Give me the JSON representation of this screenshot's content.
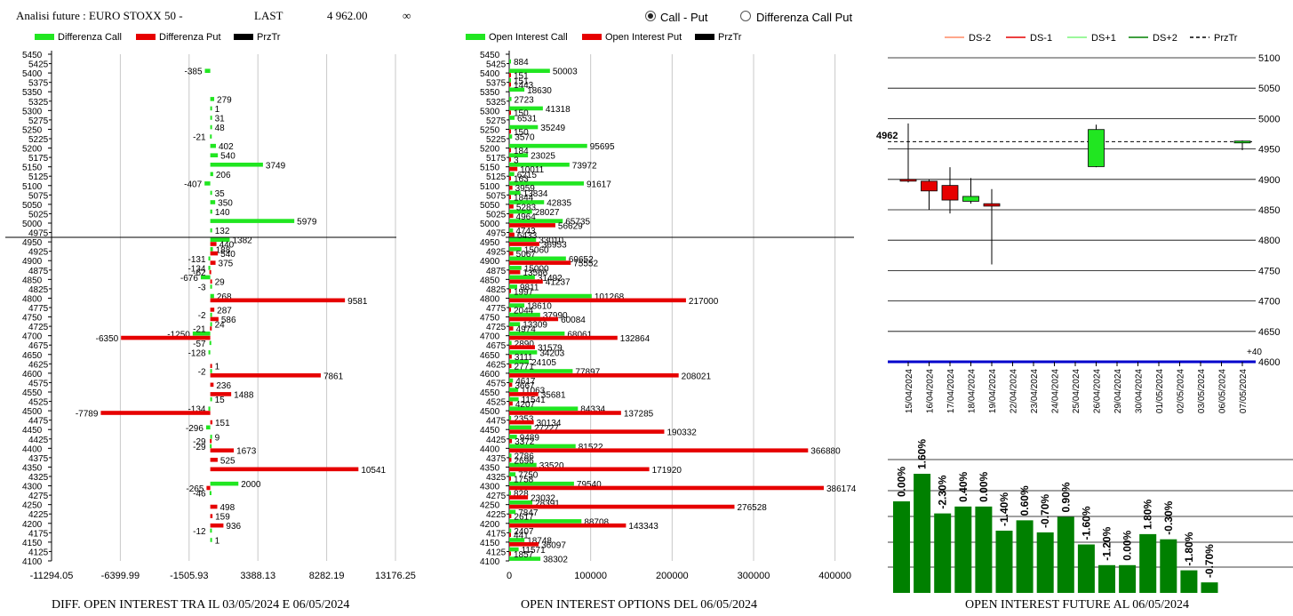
{
  "header": {
    "title": "Analisi future : EURO STOXX 50 -",
    "last_label": "LAST",
    "last_value": "4 962.00",
    "infinity_symbol": "∞",
    "options": [
      {
        "label": "Call - Put",
        "selected": true
      },
      {
        "label": "Differenza Call Put",
        "selected": false
      }
    ]
  },
  "colors": {
    "call": "#21e621",
    "put": "#e60000",
    "price": "#000000",
    "future_bar": "#008000",
    "baseline": "#0000cc"
  },
  "captions": {
    "diff": "DIFF. OPEN INTEREST TRA IL 03/05/2024 E 06/05/2024",
    "oi": "OPEN INTEREST OPTIONS DEL 06/05/2024",
    "future": "OPEN INTEREST FUTURE AL 06/05/2024"
  },
  "chart_data": [
    {
      "type": "bar",
      "orientation": "horizontal",
      "legend": [
        "Differenza Call",
        "Differenza Put",
        "PrzTr"
      ],
      "y_ticks": [
        "5450",
        "5425",
        "5400",
        "5375",
        "5350",
        "5325",
        "5300",
        "5275",
        "5250",
        "5225",
        "5200",
        "5175",
        "5150",
        "5125",
        "5100",
        "5075",
        "5050",
        "5025",
        "5000",
        "4975",
        "4950",
        "4925",
        "4900",
        "4875",
        "4850",
        "4825",
        "4800",
        "4775",
        "4750",
        "4725",
        "4700",
        "4675",
        "4650",
        "4625",
        "4600",
        "4575",
        "4550",
        "4525",
        "4500",
        "4475",
        "4450",
        "4425",
        "4400",
        "4375",
        "4350",
        "4325",
        "4300",
        "4275",
        "4250",
        "4225",
        "4200",
        "4175",
        "4150",
        "4125",
        "4100"
      ],
      "x_ticks": [
        "-11294.05",
        "-6399.99",
        "-1505.93",
        "3388.13",
        "8282.19",
        "13176.25"
      ],
      "xlim": [
        -11294.05,
        13176.25
      ],
      "price_line": 4962,
      "call": [
        [
          5400,
          -385
        ],
        [
          5325,
          279
        ],
        [
          5300,
          1
        ],
        [
          5275,
          31
        ],
        [
          5250,
          48
        ],
        [
          5225,
          -21
        ],
        [
          5200,
          402
        ],
        [
          5175,
          540
        ],
        [
          5150,
          3749
        ],
        [
          5125,
          206
        ],
        [
          5100,
          -407
        ],
        [
          5075,
          35
        ],
        [
          5050,
          350
        ],
        [
          5025,
          140
        ],
        [
          5000,
          5979
        ],
        [
          4975,
          132
        ],
        [
          4950,
          1382
        ],
        [
          4925,
          188
        ],
        [
          4900,
          -131
        ],
        [
          4875,
          -134
        ],
        [
          4850,
          -676
        ],
        [
          4825,
          -3
        ],
        [
          4800,
          268
        ],
        [
          4750,
          -2
        ],
        [
          4725,
          24
        ],
        [
          4700,
          -1250
        ],
        [
          4675,
          -57
        ],
        [
          4650,
          -128
        ],
        [
          4600,
          -2
        ],
        [
          4525,
          15
        ],
        [
          4500,
          -134
        ],
        [
          4450,
          -296
        ],
        [
          4425,
          9
        ],
        [
          4400,
          -29
        ],
        [
          4300,
          2000
        ],
        [
          4275,
          -46
        ],
        [
          4175,
          -12
        ],
        [
          4150,
          1
        ]
      ],
      "put": [
        [
          4950,
          440
        ],
        [
          4925,
          540
        ],
        [
          4900,
          375
        ],
        [
          4875,
          -62
        ],
        [
          4850,
          29
        ],
        [
          4800,
          9581
        ],
        [
          4775,
          287
        ],
        [
          4750,
          586
        ],
        [
          4725,
          -21
        ],
        [
          4700,
          -6350
        ],
        [
          4625,
          1
        ],
        [
          4600,
          7861
        ],
        [
          4575,
          236
        ],
        [
          4550,
          1488
        ],
        [
          4500,
          -7789
        ],
        [
          4475,
          151
        ],
        [
          4425,
          -29
        ],
        [
          4400,
          1673
        ],
        [
          4375,
          525
        ],
        [
          4350,
          10541
        ],
        [
          4300,
          -265
        ],
        [
          4250,
          498
        ],
        [
          4225,
          159
        ],
        [
          4200,
          936
        ]
      ]
    },
    {
      "type": "bar",
      "orientation": "horizontal",
      "legend": [
        "Open Interest Call",
        "Open Interest Put",
        "PrzTr"
      ],
      "y_ticks": [
        "5450",
        "5425",
        "5400",
        "5375",
        "5350",
        "5325",
        "5300",
        "5275",
        "5250",
        "5225",
        "5200",
        "5175",
        "5150",
        "5125",
        "5100",
        "5075",
        "5050",
        "5025",
        "5000",
        "4975",
        "4950",
        "4925",
        "4900",
        "4875",
        "4850",
        "4825",
        "4800",
        "4775",
        "4750",
        "4725",
        "4700",
        "4675",
        "4650",
        "4625",
        "4600",
        "4575",
        "4550",
        "4525",
        "4500",
        "4475",
        "4450",
        "4425",
        "4400",
        "4375",
        "4350",
        "4325",
        "4300",
        "4275",
        "4250",
        "4225",
        "4200",
        "4175",
        "4150",
        "4125",
        "4100"
      ],
      "x_ticks": [
        "0",
        "100000",
        "200000",
        "300000",
        "400000"
      ],
      "xlim": [
        0,
        420000
      ],
      "price_line": 4962,
      "call": [
        [
          5425,
          884
        ],
        [
          5400,
          50003
        ],
        [
          5375,
          151
        ],
        [
          5350,
          18630
        ],
        [
          5325,
          2723
        ],
        [
          5300,
          41318
        ],
        [
          5275,
          6531
        ],
        [
          5250,
          35249
        ],
        [
          5225,
          3570
        ],
        [
          5200,
          95695
        ],
        [
          5175,
          23025
        ],
        [
          5150,
          73972
        ],
        [
          5125,
          6215
        ],
        [
          5100,
          91617
        ],
        [
          5075,
          13834
        ],
        [
          5050,
          42835
        ],
        [
          5025,
          28027
        ],
        [
          5000,
          65735
        ],
        [
          4975,
          4743
        ],
        [
          4950,
          33010
        ],
        [
          4925,
          15060
        ],
        [
          4900,
          69652
        ],
        [
          4875,
          15000
        ],
        [
          4850,
          31492
        ],
        [
          4825,
          9811
        ],
        [
          4800,
          101268
        ],
        [
          4775,
          18610
        ],
        [
          4750,
          37990
        ],
        [
          4725,
          13309
        ],
        [
          4700,
          68061
        ],
        [
          4675,
          2890
        ],
        [
          4650,
          34203
        ],
        [
          4625,
          24105
        ],
        [
          4600,
          77897
        ],
        [
          4575,
          4617
        ],
        [
          4550,
          11063
        ],
        [
          4525,
          11541
        ],
        [
          4500,
          84334
        ],
        [
          4475,
          2353
        ],
        [
          4450,
          27227
        ],
        [
          4425,
          9489
        ],
        [
          4400,
          81522
        ],
        [
          4375,
          2786
        ],
        [
          4350,
          33520
        ],
        [
          4325,
          7750
        ],
        [
          4300,
          79540
        ],
        [
          4275,
          828
        ],
        [
          4250,
          28391
        ],
        [
          4225,
          7847
        ],
        [
          4200,
          88708
        ],
        [
          4175,
          2407
        ],
        [
          4150,
          18748
        ],
        [
          4125,
          11571
        ],
        [
          4100,
          38302
        ]
      ],
      "put": [
        [
          5400,
          151
        ],
        [
          5375,
          1443
        ],
        [
          5300,
          150
        ],
        [
          5250,
          150
        ],
        [
          5200,
          184
        ],
        [
          5175,
          3
        ],
        [
          5150,
          10011
        ],
        [
          5125,
          163
        ],
        [
          5100,
          3959
        ],
        [
          5075,
          1844
        ],
        [
          5050,
          5283
        ],
        [
          5025,
          4964
        ],
        [
          5000,
          56629
        ],
        [
          4975,
          6433
        ],
        [
          4950,
          36953
        ],
        [
          4925,
          5067
        ],
        [
          4900,
          75552
        ],
        [
          4875,
          13566
        ],
        [
          4850,
          41237
        ],
        [
          4825,
          1997
        ],
        [
          4800,
          217000
        ],
        [
          4775,
          2044
        ],
        [
          4750,
          60084
        ],
        [
          4725,
          4974
        ],
        [
          4700,
          132864
        ],
        [
          4675,
          31579
        ],
        [
          4650,
          3111
        ],
        [
          4625,
          2771
        ],
        [
          4600,
          208021
        ],
        [
          4575,
          3667
        ],
        [
          4550,
          35681
        ],
        [
          4525,
          4207
        ],
        [
          4500,
          137285
        ],
        [
          4475,
          30134
        ],
        [
          4450,
          190332
        ],
        [
          4425,
          3372
        ],
        [
          4400,
          366880
        ],
        [
          4375,
          2696
        ],
        [
          4350,
          171920
        ],
        [
          4325,
          1758
        ],
        [
          4300,
          386174
        ],
        [
          4275,
          23032
        ],
        [
          4250,
          276528
        ],
        [
          4225,
          2617
        ],
        [
          4200,
          143343
        ],
        [
          4175,
          441
        ],
        [
          4150,
          36097
        ],
        [
          4125,
          1857
        ]
      ]
    },
    {
      "type": "candlestick",
      "legend": [
        "DS-2",
        "DS-1",
        "DS+1",
        "DS+2",
        "PrzTr"
      ],
      "price_label": "4962",
      "price_line": 4962,
      "ylim": [
        4600,
        5100
      ],
      "y_ticks": [
        "5100",
        "5050",
        "5000",
        "4950",
        "4900",
        "4850",
        "4800",
        "4750",
        "4700",
        "4650",
        "4600"
      ],
      "baseline_label": "+40",
      "dates": [
        "15/04/2024",
        "16/04/2024",
        "17/04/2024",
        "18/04/2024",
        "19/04/2024",
        "22/04/2024",
        "23/04/2024",
        "24/04/2024",
        "25/04/2024",
        "26/04/2024",
        "29/04/2024",
        "30/04/2024",
        "01/05/2024",
        "02/05/2024",
        "03/05/2024",
        "06/05/2024",
        "07/05/2024"
      ],
      "candles": [
        {
          "date": "15/04/2024",
          "open": 4900,
          "close": 4898,
          "high": 4992,
          "low": 4895
        },
        {
          "date": "16/04/2024",
          "open": 4897,
          "close": 4881,
          "high": 4900,
          "low": 4850
        },
        {
          "date": "17/04/2024",
          "open": 4890,
          "close": 4866,
          "high": 4920,
          "low": 4844
        },
        {
          "date": "18/04/2024",
          "open": 4864,
          "close": 4872,
          "high": 4902,
          "low": 4860
        },
        {
          "date": "19/04/2024",
          "open": 4860,
          "close": 4856,
          "high": 4884,
          "low": 4760
        },
        {
          "date": "26/04/2024",
          "open": 4921,
          "close": 4982,
          "high": 4990,
          "low": 4920
        },
        {
          "date": "07/05/2024",
          "open": 4960,
          "close": 4963,
          "high": 4964,
          "low": 4948
        }
      ]
    },
    {
      "type": "bar",
      "title": "",
      "categories": [
        "15/04/2024",
        "16/04/2024",
        "17/04/2024",
        "18/04/2024",
        "19/04/2024",
        "22/04/2024",
        "23/04/2024",
        "24/04/2024",
        "25/04/2024",
        "26/04/2024",
        "29/04/2024",
        "30/04/2024",
        "01/05/2024",
        "02/05/2024",
        "03/05/2024",
        "06/05/2024"
      ],
      "labels": [
        "0.00%",
        "1.60%",
        "-2.30%",
        "0.40%",
        "0.00%",
        "-1.40%",
        "0.60%",
        "-0.70%",
        "0.90%",
        "-1.60%",
        "-1.20%",
        "0.00%",
        "1.80%",
        "-0.30%",
        "-1.80%",
        "-0.70%"
      ],
      "values": [
        100.0,
        101.6,
        99.3,
        99.7,
        99.7,
        98.3,
        98.9,
        98.2,
        99.1,
        97.5,
        96.3,
        96.3,
        98.1,
        97.8,
        96.0,
        95.3
      ]
    }
  ]
}
